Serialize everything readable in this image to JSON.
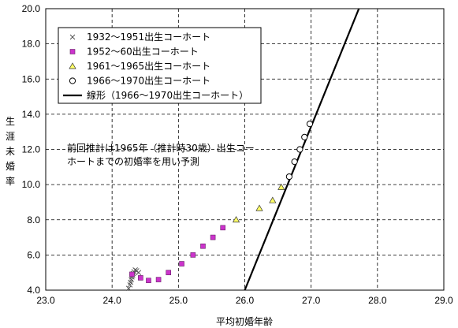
{
  "chart_data": {
    "type": "scatter",
    "xlabel": "平均初婚年齢",
    "ylabel": "生涯未婚率",
    "xlim": [
      23.0,
      29.0
    ],
    "ylim": [
      4.0,
      20.0
    ],
    "x_ticks": [
      "23.0",
      "24.0",
      "25.0",
      "26.0",
      "27.0",
      "28.0",
      "29.0"
    ],
    "y_ticks": [
      "4.0",
      "6.0",
      "8.0",
      "10.0",
      "12.0",
      "14.0",
      "16.0",
      "18.0",
      "20.0"
    ],
    "grid": true,
    "legend_position": "top-left",
    "annotation": [
      "前回推計は1965年（推計時30歳）出生コー",
      "ホートまでの初婚率を用い予測"
    ],
    "series": [
      {
        "name": "1932～1951出生コーホート",
        "marker": "x",
        "color": "#555555",
        "points": [
          {
            "x": 24.25,
            "y": 4.1
          },
          {
            "x": 24.27,
            "y": 4.3
          },
          {
            "x": 24.28,
            "y": 4.45
          },
          {
            "x": 24.29,
            "y": 4.6
          },
          {
            "x": 24.3,
            "y": 4.75
          },
          {
            "x": 24.31,
            "y": 4.85
          },
          {
            "x": 24.32,
            "y": 4.95
          },
          {
            "x": 24.33,
            "y": 5.05
          },
          {
            "x": 24.35,
            "y": 5.15
          },
          {
            "x": 24.37,
            "y": 5.1
          },
          {
            "x": 24.4,
            "y": 5.0
          }
        ]
      },
      {
        "name": "1952～60出生コーホート",
        "marker": "square",
        "color": "#cc33cc",
        "points": [
          {
            "x": 24.3,
            "y": 4.9
          },
          {
            "x": 24.43,
            "y": 4.7
          },
          {
            "x": 24.55,
            "y": 4.55
          },
          {
            "x": 24.7,
            "y": 4.6
          },
          {
            "x": 24.85,
            "y": 5.0
          },
          {
            "x": 25.05,
            "y": 5.5
          },
          {
            "x": 25.22,
            "y": 6.0
          },
          {
            "x": 25.37,
            "y": 6.5
          },
          {
            "x": 25.52,
            "y": 7.0
          },
          {
            "x": 25.67,
            "y": 7.55
          }
        ]
      },
      {
        "name": "1961～1965出生コーホート",
        "marker": "triangle",
        "color": "#ffff66",
        "points": [
          {
            "x": 25.87,
            "y": 8.0
          },
          {
            "x": 26.22,
            "y": 8.65
          },
          {
            "x": 26.42,
            "y": 9.1
          },
          {
            "x": 26.55,
            "y": 9.85
          }
        ]
      },
      {
        "name": "1966～1970出生コーホート",
        "marker": "circle",
        "color": "#ffffff",
        "points": [
          {
            "x": 26.67,
            "y": 10.45
          },
          {
            "x": 26.75,
            "y": 11.3
          },
          {
            "x": 26.83,
            "y": 12.0
          },
          {
            "x": 26.9,
            "y": 12.7
          },
          {
            "x": 26.98,
            "y": 13.45
          }
        ]
      }
    ],
    "line": {
      "name": "線形（1966～1970出生コーホート）",
      "color": "#000000",
      "points": [
        {
          "x": 26.0,
          "y": 4.0
        },
        {
          "x": 27.72,
          "y": 20.0
        }
      ]
    }
  }
}
